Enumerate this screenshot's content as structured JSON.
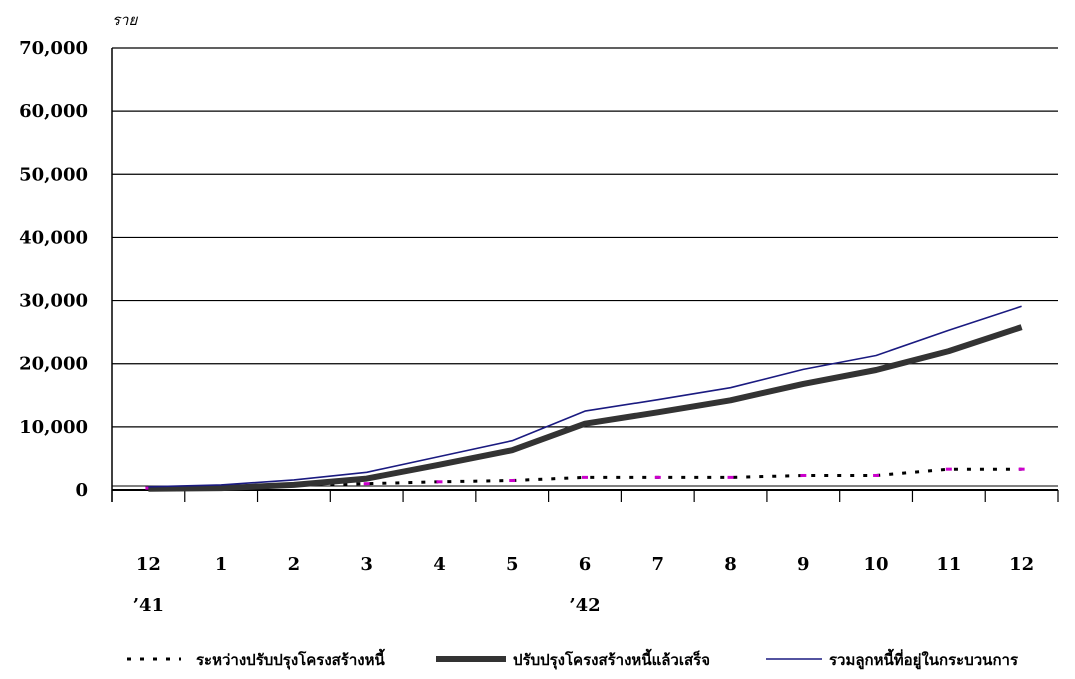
{
  "chart_data": {
    "type": "line",
    "ylabel": "ราย",
    "ylim": [
      0,
      70000
    ],
    "yticks": [
      {
        "value": 0,
        "label": "0"
      },
      {
        "value": 10000,
        "label": "10,000"
      },
      {
        "value": 20000,
        "label": "20,000"
      },
      {
        "value": 30000,
        "label": "30,000"
      },
      {
        "value": 40000,
        "label": "40,000"
      },
      {
        "value": 50000,
        "label": "50,000"
      },
      {
        "value": 60000,
        "label": "60,000"
      },
      {
        "value": 70000,
        "label": "70,000"
      }
    ],
    "categories": [
      "12",
      "1",
      "2",
      "3",
      "4",
      "5",
      "6",
      "7",
      "8",
      "9",
      "10",
      "11",
      "12"
    ],
    "year_labels": [
      {
        "label": "’41",
        "category_index": 0
      },
      {
        "label": "’42",
        "category_index": 6
      }
    ],
    "grid": true,
    "legend_position": "bottom",
    "series": [
      {
        "name": "ระหว่างปรับปรุงโครงสร้างหนี้",
        "style": "dotted",
        "color": "#000000",
        "marker_color": "#cc00cc",
        "values": [
          300,
          500,
          800,
          1000,
          1300,
          1500,
          2000,
          2000,
          2000,
          2300,
          2300,
          3300,
          3300
        ]
      },
      {
        "name": "ปรับปรุงโครงสร้างหนี้แล้วเสร็จ",
        "style": "thick",
        "color": "#333333",
        "values": [
          200,
          300,
          800,
          1800,
          4000,
          6300,
          10500,
          12300,
          14200,
          16800,
          19000,
          22000,
          25800
        ]
      },
      {
        "name": "รวมลูกหนี้ที่อยู่ในกระบวนการ",
        "style": "thin",
        "color": "#1a1a80",
        "values": [
          500,
          800,
          1600,
          2800,
          5300,
          7800,
          12500,
          14300,
          16200,
          19100,
          21300,
          25300,
          29100
        ]
      }
    ]
  }
}
